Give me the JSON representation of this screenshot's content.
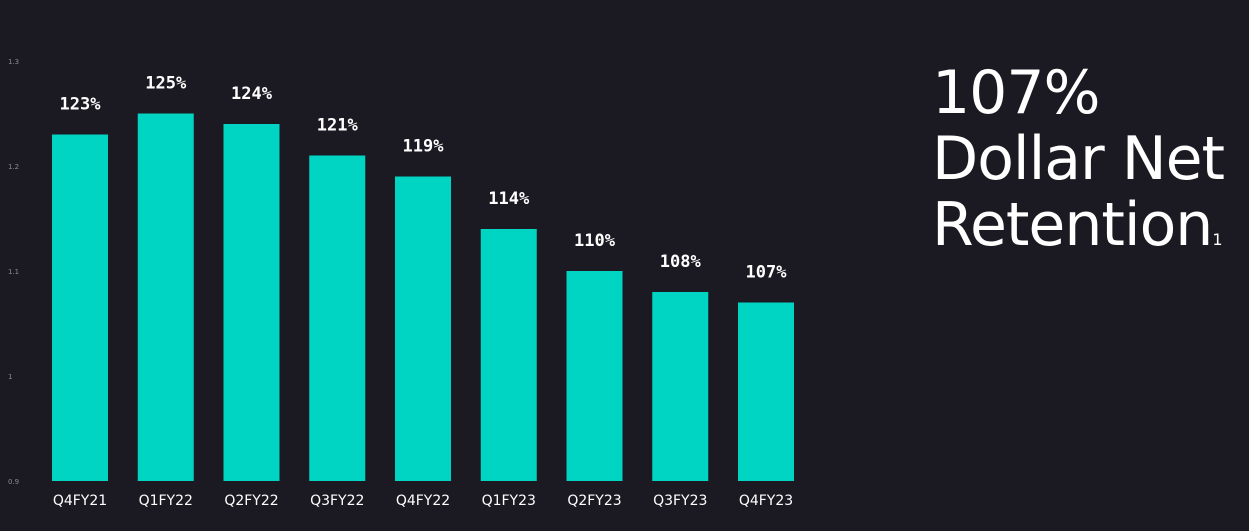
{
  "headline": {
    "value": "107%",
    "line2": "Dollar Net",
    "line3": "Retention",
    "footnote": "1"
  },
  "chart_data": {
    "type": "bar",
    "categories": [
      "Q4FY21",
      "Q1FY22",
      "Q2FY22",
      "Q3FY22",
      "Q4FY22",
      "Q1FY23",
      "Q2FY23",
      "Q3FY23",
      "Q4FY23"
    ],
    "values": [
      1.23,
      1.25,
      1.24,
      1.21,
      1.19,
      1.14,
      1.1,
      1.08,
      1.07
    ],
    "data_labels": [
      "123%",
      "125%",
      "124%",
      "121%",
      "119%",
      "114%",
      "110%",
      "108%",
      "107%"
    ],
    "ylim": [
      0.9,
      1.3
    ],
    "yticks": [
      0.9,
      1,
      1.1,
      1.2,
      1.3
    ],
    "ytick_labels": [
      "0.9",
      "1",
      "1.1",
      "1.2",
      "1.3"
    ],
    "grid": false,
    "bar_color": "#00d4c3",
    "background": "#1b1a22",
    "title": "",
    "xlabel": "",
    "ylabel": ""
  }
}
